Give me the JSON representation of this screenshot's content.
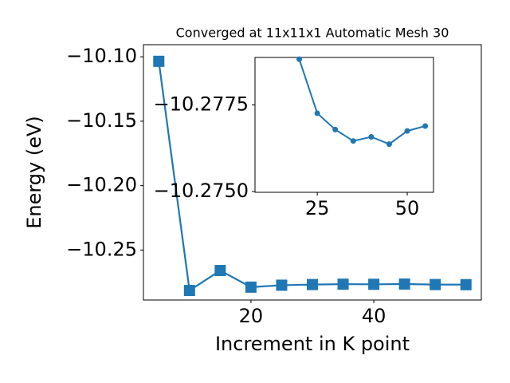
{
  "chart_data": [
    {
      "type": "line",
      "title": "Converged at 11x11x1 Automatic Mesh 30",
      "x_label": "Increment in K point",
      "y_label": "Energy (eV)",
      "x": [
        5,
        10,
        15,
        20,
        25,
        30,
        35,
        40,
        45,
        50,
        55
      ],
      "series": [
        {
          "name": "energy",
          "color": "#1f77b4",
          "marker": "square",
          "values": [
            -10.1035,
            -10.2814,
            -10.2659,
            -10.2788,
            -10.2773,
            -10.2768,
            -10.2765,
            -10.2766,
            -10.2764,
            -10.2768,
            -10.2769
          ]
        }
      ],
      "xlim": [
        2.5,
        57.5
      ],
      "ylim": [
        -10.2888,
        -10.0906
      ],
      "xticks": [
        20,
        40
      ],
      "yticks": [
        {
          "value": -10.25,
          "label": "−10.25"
        },
        {
          "value": -10.2,
          "label": "−10.20"
        },
        {
          "value": -10.15,
          "label": "−10.15"
        },
        {
          "value": -10.1,
          "label": "−10.10"
        }
      ]
    },
    {
      "type": "line",
      "x": [
        20,
        25,
        30,
        35,
        40,
        45,
        50,
        55
      ],
      "series": [
        {
          "name": "energy",
          "color": "#1f77b4",
          "marker": "circle",
          "values": [
            -10.27882,
            -10.27726,
            -10.27679,
            -10.27646,
            -10.27658,
            -10.27637,
            -10.27675,
            -10.27689
          ]
        }
      ],
      "xlim": [
        7.7,
        57.3
      ],
      "ylim": [
        -10.27498,
        -10.27887
      ],
      "xticks": [
        25,
        50
      ],
      "yticks": [
        {
          "value": -10.2775,
          "label": "−10.2775"
        },
        {
          "value": -10.275,
          "label": "−10.2750"
        }
      ]
    }
  ]
}
